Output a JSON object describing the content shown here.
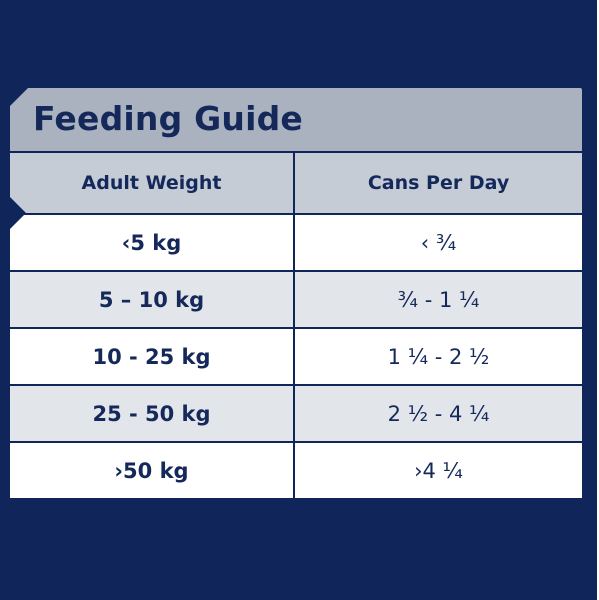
{
  "guide": {
    "title": "Feeding Guide",
    "headers": {
      "weight": "Adult Weight",
      "cans": "Cans Per Day"
    },
    "rows": [
      {
        "weight": "‹5 kg",
        "cans": "‹ ¾"
      },
      {
        "weight": "5 – 10 kg",
        "cans": "¾ - 1 ¼"
      },
      {
        "weight": "10 - 25 kg",
        "cans": "1 ¼ - 2 ½"
      },
      {
        "weight": "25 - 50 kg",
        "cans": "2 ½ - 4 ¼"
      },
      {
        "weight": "›50 kg",
        "cans": "›4 ¼"
      }
    ]
  },
  "colors": {
    "background": "#10265a",
    "title_bar": "#aab2bf",
    "header_row": "#c5ccd6",
    "row_light": "#ffffff",
    "row_grey": "#e2e5ea",
    "text": "#14285a"
  }
}
